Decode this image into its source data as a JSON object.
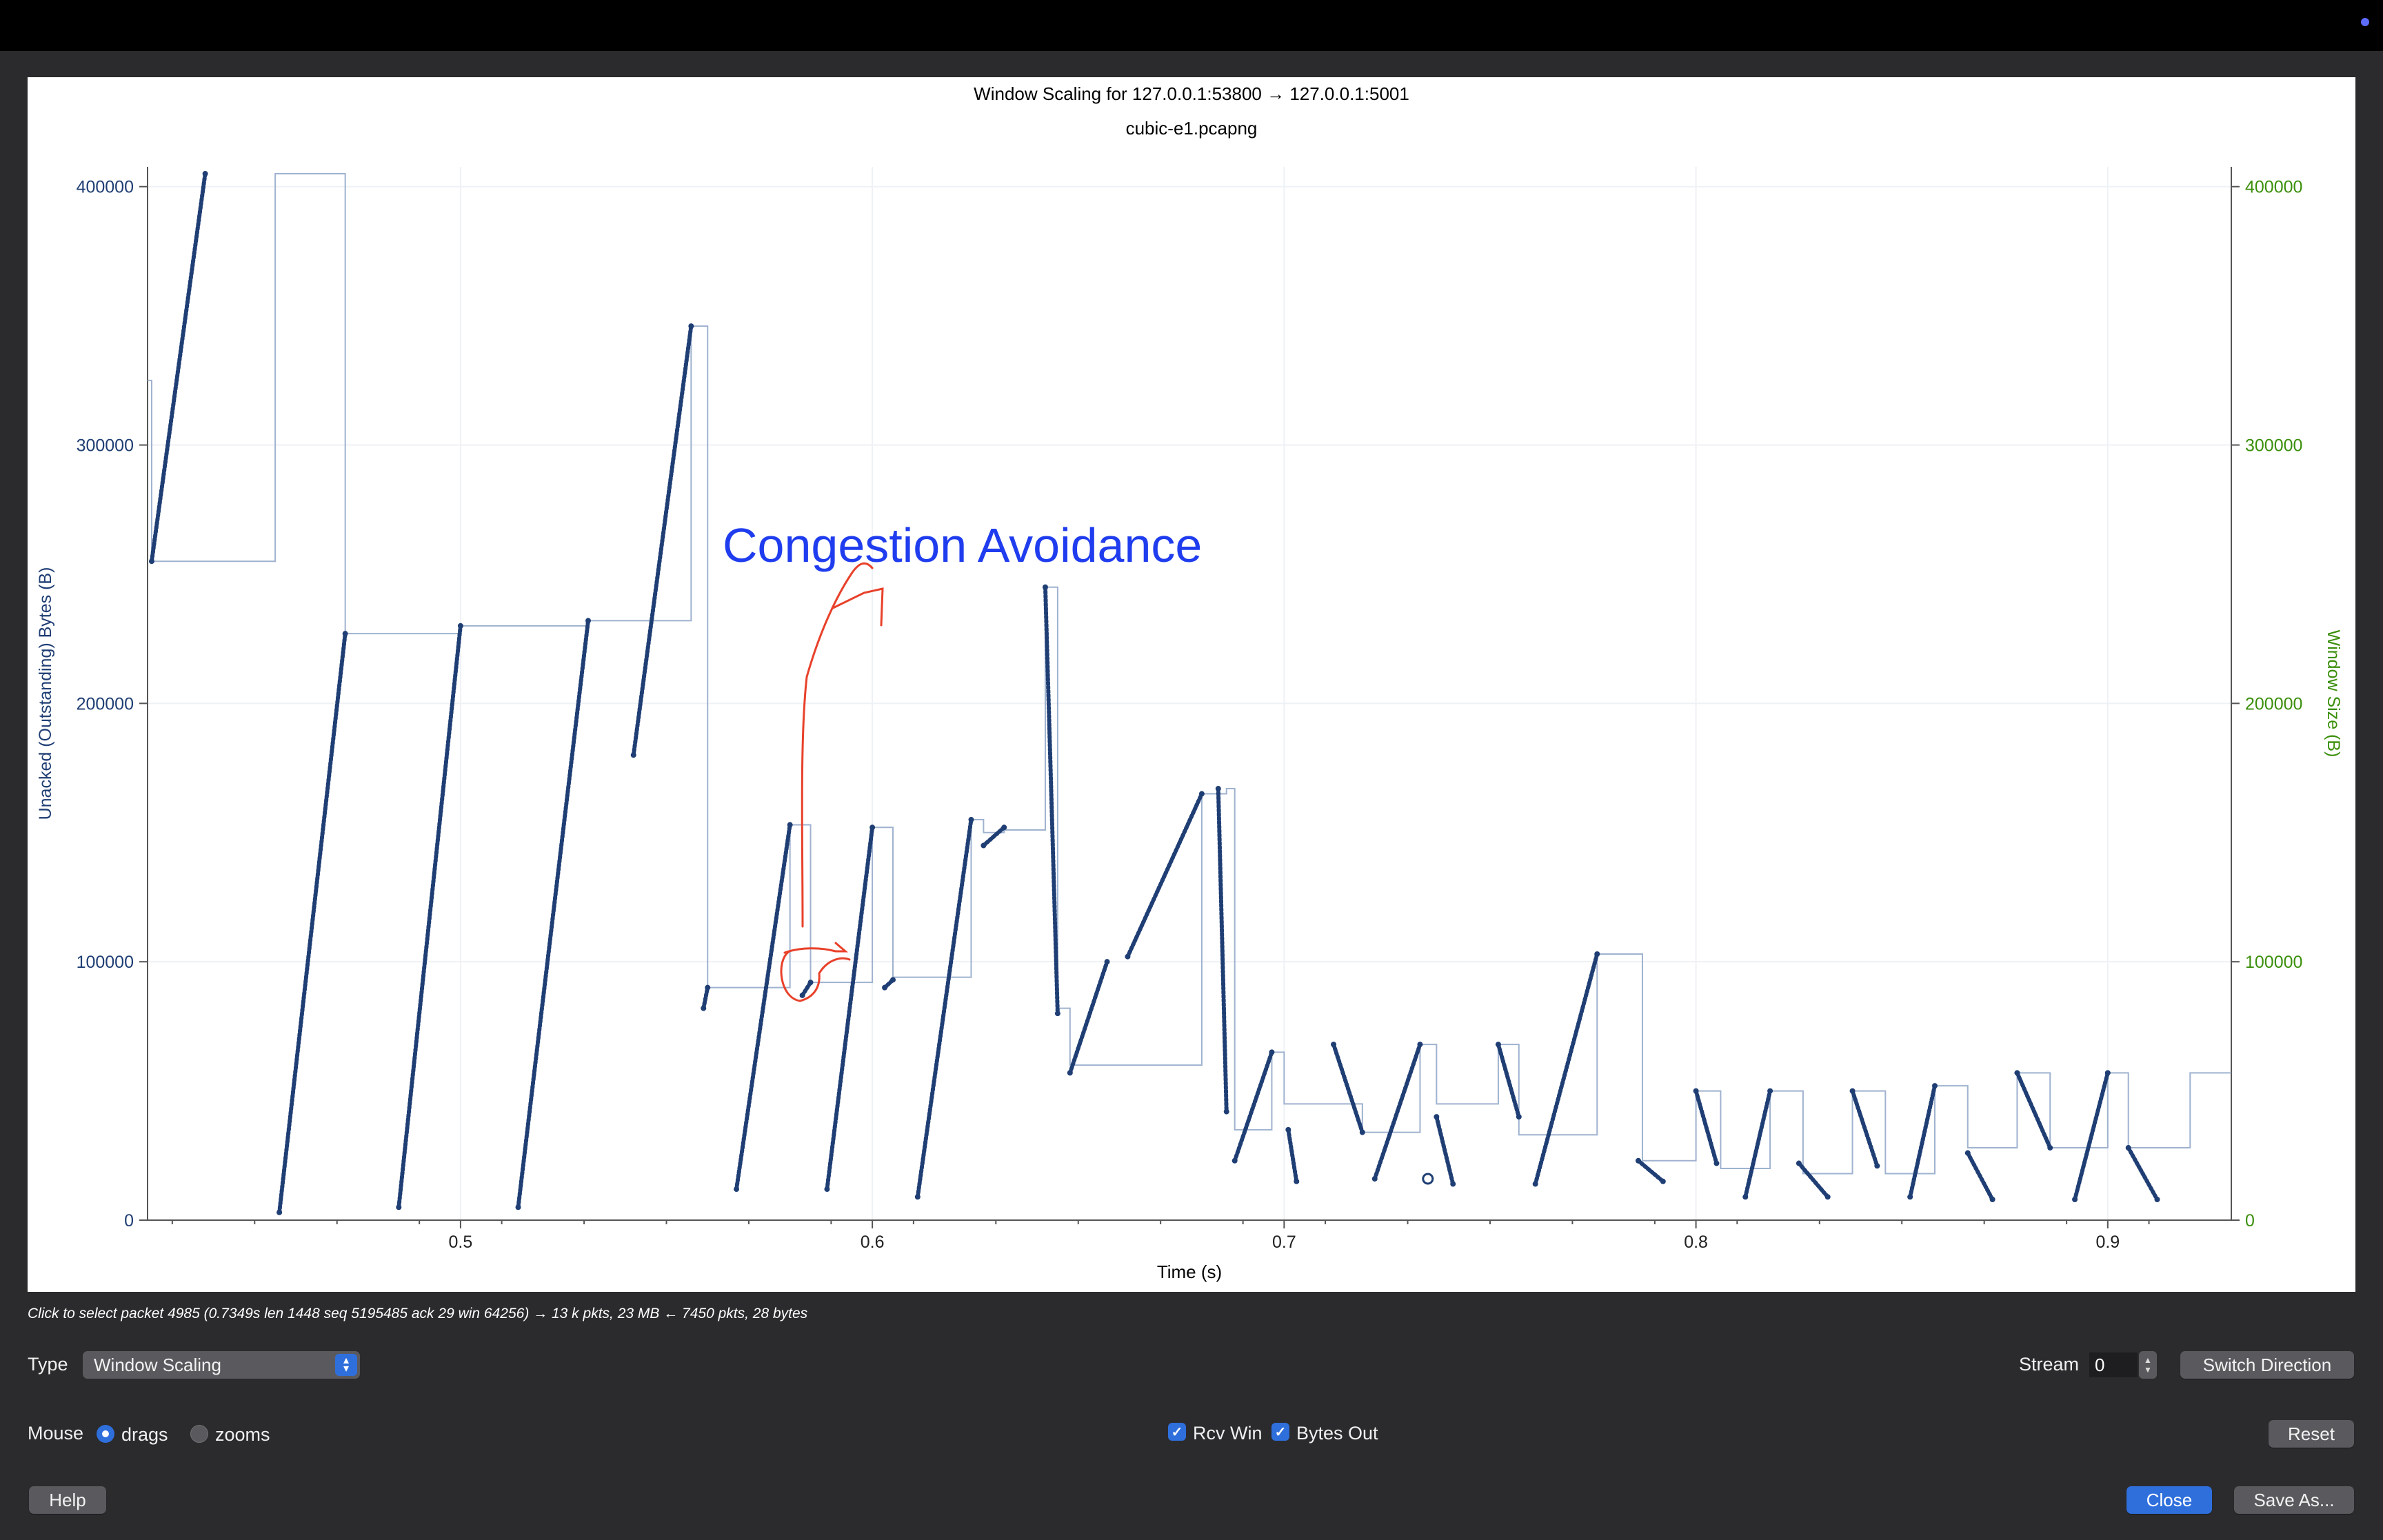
{
  "window": {
    "title": "Window Scaling for 127.0.0.1:53800 → 127.0.0.1:5001",
    "subtitle": "cubic-e1.pcapng"
  },
  "annotation": {
    "text": "Congestion Avoidance",
    "text_color": "#1f3dee",
    "ink_color": "#e8412a"
  },
  "chart_data": {
    "type": "line",
    "title": "Window Scaling for 127.0.0.1:53800 → 127.0.0.1:5001",
    "subtitle": "cubic-e1.pcapng",
    "xlabel": "Time (s)",
    "ylabel_left": "Unacked (Outstanding) Bytes (B)",
    "ylabel_right": "Window Size (B)",
    "xlim": [
      0.424,
      0.93
    ],
    "ylim": [
      0,
      405000
    ],
    "x_ticks": [
      "0.5",
      "0.6",
      "0.7",
      "0.8",
      "0.9"
    ],
    "x_tick_values": [
      0.5,
      0.6,
      0.7,
      0.8,
      0.9
    ],
    "y_ticks_left": [
      "0",
      "100000",
      "200000",
      "300000",
      "400000"
    ],
    "y_ticks_right": [
      "0",
      "100000",
      "200000",
      "300000",
      "400000"
    ],
    "y_tick_values": [
      0,
      100000,
      200000,
      300000,
      400000
    ],
    "grid": true,
    "colors": {
      "bytes_out": "#1f3e74",
      "rcv_win": "#9fb2cf",
      "left_axis": "#1f3e74",
      "right_axis": "#3b8f0b"
    },
    "series": [
      {
        "name": "Bytes Out",
        "values": [
          [
            0.425,
            255000
          ],
          [
            0.438,
            405000
          ],
          [
            0.456,
            3000
          ],
          [
            0.472,
            227000
          ],
          [
            0.485,
            5000
          ],
          [
            0.5,
            230000
          ],
          [
            0.514,
            5000
          ],
          [
            0.531,
            232000
          ],
          [
            0.542,
            180000
          ],
          [
            0.556,
            346000
          ],
          [
            0.559,
            82000
          ],
          [
            0.56,
            90000
          ],
          [
            0.567,
            12000
          ],
          [
            0.58,
            153000
          ],
          [
            0.583,
            87000
          ],
          [
            0.585,
            92000
          ],
          [
            0.589,
            12000
          ],
          [
            0.6,
            152000
          ],
          [
            0.603,
            90000
          ],
          [
            0.605,
            93000
          ],
          [
            0.611,
            9000
          ],
          [
            0.624,
            155000
          ],
          [
            0.627,
            145000
          ],
          [
            0.632,
            152000
          ],
          [
            0.642,
            245000
          ],
          [
            0.645,
            80000
          ],
          [
            0.648,
            57000
          ],
          [
            0.657,
            100000
          ],
          [
            0.662,
            102000
          ],
          [
            0.68,
            165000
          ],
          [
            0.684,
            167000
          ],
          [
            0.686,
            42000
          ],
          [
            0.688,
            23000
          ],
          [
            0.697,
            65000
          ],
          [
            0.701,
            35000
          ],
          [
            0.703,
            15000
          ],
          [
            0.712,
            68000
          ],
          [
            0.719,
            34000
          ],
          [
            0.722,
            16000
          ],
          [
            0.733,
            68000
          ],
          [
            0.737,
            40000
          ],
          [
            0.741,
            14000
          ],
          [
            0.752,
            68000
          ],
          [
            0.757,
            40000
          ],
          [
            0.761,
            14000
          ],
          [
            0.776,
            103000
          ],
          [
            0.786,
            23000
          ],
          [
            0.792,
            15000
          ],
          [
            0.8,
            50000
          ],
          [
            0.805,
            22000
          ],
          [
            0.812,
            9000
          ],
          [
            0.818,
            50000
          ],
          [
            0.825,
            22000
          ],
          [
            0.832,
            9000
          ],
          [
            0.838,
            50000
          ],
          [
            0.844,
            21000
          ],
          [
            0.852,
            9000
          ],
          [
            0.858,
            52000
          ],
          [
            0.866,
            26000
          ],
          [
            0.872,
            8000
          ],
          [
            0.878,
            57000
          ],
          [
            0.886,
            28000
          ],
          [
            0.892,
            8000
          ],
          [
            0.9,
            57000
          ],
          [
            0.905,
            28000
          ],
          [
            0.912,
            8000
          ],
          [
            0.92,
            57000
          ]
        ]
      },
      {
        "name": "Rcv Win",
        "values": [
          [
            0.424,
            325000
          ],
          [
            0.425,
            255000
          ],
          [
            0.455,
            405000
          ],
          [
            0.456,
            405000
          ],
          [
            0.472,
            227000
          ],
          [
            0.482,
            227000
          ],
          [
            0.5,
            230000
          ],
          [
            0.512,
            230000
          ],
          [
            0.531,
            232000
          ],
          [
            0.541,
            232000
          ],
          [
            0.556,
            346000
          ],
          [
            0.559,
            346000
          ],
          [
            0.56,
            90000
          ],
          [
            0.567,
            90000
          ],
          [
            0.58,
            153000
          ],
          [
            0.583,
            153000
          ],
          [
            0.585,
            92000
          ],
          [
            0.589,
            92000
          ],
          [
            0.6,
            152000
          ],
          [
            0.603,
            152000
          ],
          [
            0.605,
            94000
          ],
          [
            0.61,
            94000
          ],
          [
            0.624,
            155000
          ],
          [
            0.627,
            150000
          ],
          [
            0.632,
            151000
          ],
          [
            0.642,
            245000
          ],
          [
            0.644,
            245000
          ],
          [
            0.645,
            82000
          ],
          [
            0.648,
            60000
          ],
          [
            0.656,
            60000
          ],
          [
            0.68,
            165000
          ],
          [
            0.686,
            167000
          ],
          [
            0.688,
            35000
          ],
          [
            0.695,
            35000
          ],
          [
            0.697,
            65000
          ],
          [
            0.7,
            45000
          ],
          [
            0.711,
            45000
          ],
          [
            0.719,
            34000
          ],
          [
            0.733,
            68000
          ],
          [
            0.737,
            45000
          ],
          [
            0.752,
            68000
          ],
          [
            0.757,
            33000
          ],
          [
            0.776,
            103000
          ],
          [
            0.786,
            103000
          ],
          [
            0.787,
            23000
          ],
          [
            0.8,
            50000
          ],
          [
            0.806,
            20000
          ],
          [
            0.818,
            50000
          ],
          [
            0.826,
            18000
          ],
          [
            0.838,
            50000
          ],
          [
            0.846,
            18000
          ],
          [
            0.858,
            52000
          ],
          [
            0.866,
            28000
          ],
          [
            0.878,
            57000
          ],
          [
            0.886,
            28000
          ],
          [
            0.9,
            57000
          ],
          [
            0.905,
            28000
          ],
          [
            0.92,
            57000
          ],
          [
            0.93,
            57000
          ]
        ]
      }
    ]
  },
  "status_line": "Click to select packet 4985 (0.7349s len 1448 seq 5195485 ack 29 win 64256) → 13 k pkts, 23 MB ← 7450 pkts, 28 bytes",
  "controls": {
    "type_label": "Type",
    "type_value": "Window Scaling",
    "stream_label": "Stream",
    "stream_value": "0",
    "switch_direction": "Switch Direction",
    "mouse_label": "Mouse",
    "drags_label": "drags",
    "zooms_label": "zooms",
    "rcv_win_label": "Rcv Win",
    "bytes_out_label": "Bytes Out",
    "reset": "Reset",
    "help": "Help",
    "close": "Close",
    "save_as": "Save As..."
  }
}
